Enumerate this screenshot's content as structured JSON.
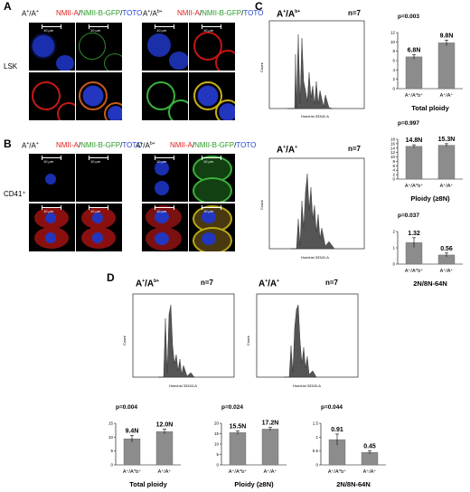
{
  "figure": {
    "panel_labels": {
      "A": "A",
      "B": "B",
      "C": "C",
      "D": "D"
    },
    "legend_title": {
      "plus_plus": "A",
      "b_plus": "A",
      "sep": "/",
      "sup_plus": "+",
      "sup_b": "b+"
    },
    "channels": {
      "a": "NMII-A",
      "b": "NMII-B-GFP",
      "t": "TOTO",
      "slash": "/"
    },
    "rows": {
      "lsk": "LSK",
      "cd41": "CD41⁺"
    },
    "scale_bar": "10 μm",
    "n_label": "n=7",
    "hoechst_c": "Hoechst 33342-A",
    "hoechst_d": "Hoechst 33343-A",
    "count_label": "Count",
    "genotype_bplus": "A⁺/A^b⁺",
    "genotype_plus": "A⁺/A⁺"
  },
  "chart_data": [
    {
      "id": "C-total",
      "type": "bar",
      "panel": "C",
      "categories": [
        "A⁺/A^b⁺",
        "A⁺/A⁺"
      ],
      "values": [
        6.8,
        9.8
      ],
      "errors": [
        0.5,
        0.6
      ],
      "value_labels": [
        "6.8N",
        "9.8N"
      ],
      "pvalue": "p=0.003",
      "xlabel": "Total ploidy",
      "ylim": [
        0,
        12
      ],
      "yticks": [
        "0",
        "2",
        "4",
        "6",
        "8",
        "10",
        "12"
      ]
    },
    {
      "id": "C-ploidy",
      "type": "bar",
      "panel": "C",
      "categories": [
        "A⁺/A^b⁺",
        "A⁺/A⁺"
      ],
      "values": [
        14.8,
        15.3
      ],
      "errors": [
        0.7,
        0.7
      ],
      "value_labels": [
        "14.8N",
        "15.3N"
      ],
      "pvalue": "p=0.997",
      "xlabel": "Ploidy (≥8N)",
      "ylim": [
        0,
        18
      ],
      "yticks": [
        "0",
        "2",
        "4",
        "6",
        "8",
        "10",
        "12",
        "14",
        "16",
        "18"
      ]
    },
    {
      "id": "C-ratio",
      "type": "bar",
      "panel": "C",
      "categories": [
        "A⁺/A^b⁺",
        "A⁺/A⁺"
      ],
      "values": [
        1.32,
        0.56
      ],
      "errors": [
        0.3,
        0.12
      ],
      "value_labels": [
        "1.32",
        "0.56"
      ],
      "pvalue": "p=0.037",
      "xlabel": "2N/8N-64N",
      "ylim": [
        0,
        2
      ],
      "yticks": [
        "0",
        "1",
        "2"
      ]
    },
    {
      "id": "D-total",
      "type": "bar",
      "panel": "D",
      "categories": [
        "A⁺/A^b⁺",
        "A⁺/A⁺"
      ],
      "values": [
        9.4,
        12.0
      ],
      "errors": [
        1.2,
        0.9
      ],
      "value_labels": [
        "9.4N",
        "12.0N"
      ],
      "pvalue": "p=0.004",
      "xlabel": "Total ploidy",
      "ylim": [
        0,
        15
      ],
      "yticks": [
        "0",
        "5",
        "10",
        "15"
      ]
    },
    {
      "id": "D-ploidy",
      "type": "bar",
      "panel": "D",
      "categories": [
        "A⁺/A^b⁺",
        "A⁺/A⁺"
      ],
      "values": [
        15.5,
        17.2
      ],
      "errors": [
        0.8,
        0.8
      ],
      "value_labels": [
        "15.5N",
        "17.2N"
      ],
      "pvalue": "p=0.024",
      "xlabel": "Ploidy (≥8N)",
      "ylim": [
        0,
        20
      ],
      "yticks": [
        "0",
        "5",
        "10",
        "15",
        "20"
      ]
    },
    {
      "id": "D-ratio",
      "type": "bar",
      "panel": "D",
      "categories": [
        "A⁺/A^b⁺",
        "A⁺/A⁺"
      ],
      "values": [
        0.91,
        0.45
      ],
      "errors": [
        0.2,
        0.06
      ],
      "value_labels": [
        "0.91",
        "0.45"
      ],
      "pvalue": "p=0.044",
      "xlabel": "2N/8N-64N",
      "ylim": [
        0,
        1.5
      ],
      "yticks": [
        "0",
        "0.5",
        "1",
        "1.5"
      ]
    }
  ]
}
